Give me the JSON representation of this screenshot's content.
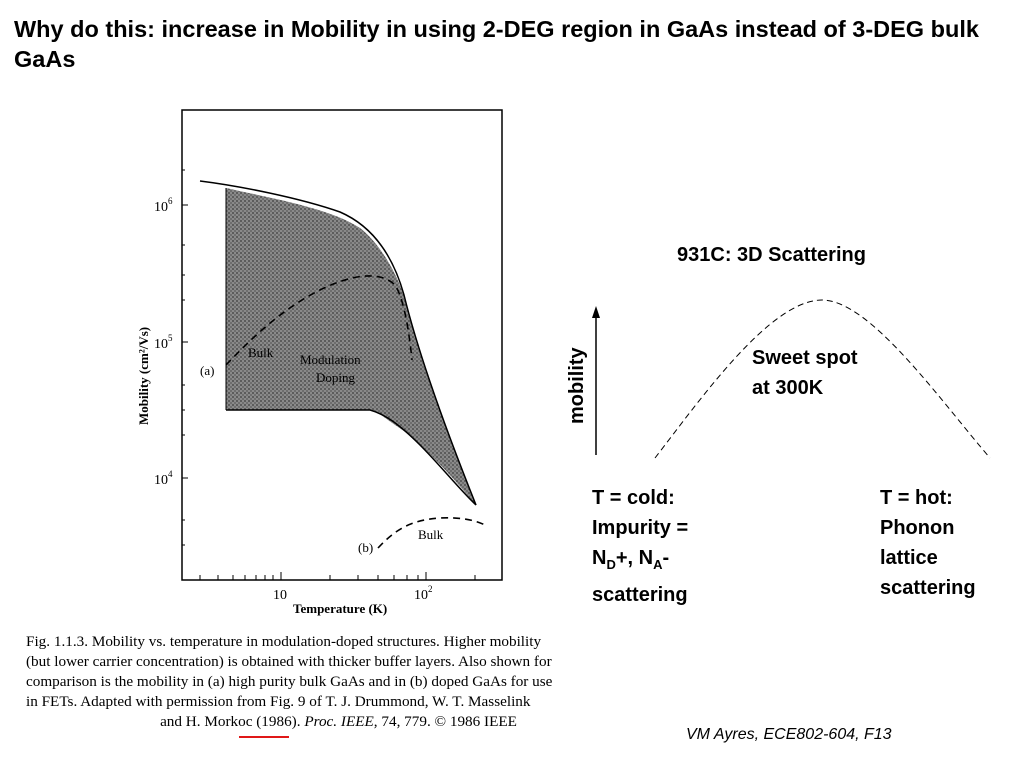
{
  "slide": {
    "title": "Why do this: increase in Mobility in using 2-DEG region in GaAs instead of 3-DEG bulk GaAs",
    "credit": "VM Ayres, ECE802-604, F13"
  },
  "figure": {
    "y_axis_label": "Mobility (cm²/Vs)",
    "x_axis_label": "Temperature (K)",
    "y_ticks": [
      "10",
      "10",
      "10"
    ],
    "y_tick_exponents": [
      "6",
      "5",
      "4"
    ],
    "x_ticks": [
      "10",
      "10"
    ],
    "x_tick_exponent": "2",
    "labels": {
      "a": "(a)",
      "b": "(b)",
      "bulk_a": "Bulk",
      "bulk_b": "Bulk",
      "modulation_1": "Modulation",
      "modulation_2": "Doping"
    },
    "caption_lines": [
      "Fig. 1.1.3. Mobility vs. temperature in modulation-doped structures. Higher mobility",
      "(but lower carrier concentration) is obtained with thicker buffer layers. Also shown for",
      "comparison is the mobility in (a) high purity bulk GaAs and in (b) doped GaAs for use",
      "in FETs. Adapted with permission from Fig. 9 of T. J. Drummond, W. T. Masselink"
    ],
    "caption_last_pre": "and H. Morkoc (1986). ",
    "caption_last_journal": "Proc. IEEE",
    "caption_last_post": ", 74, 779. © 1986 IEEE",
    "caption_highlight_color": "#e01818"
  },
  "chart_data": {
    "type": "line",
    "title": "",
    "xlabel": "Temperature (K)",
    "ylabel": "Mobility (cm²/Vs)",
    "x_scale": "log",
    "y_scale": "log",
    "xlim": [
      2,
      400
    ],
    "ylim": [
      2000,
      3000000
    ],
    "series": [
      {
        "name": "(a) Bulk",
        "x": [
          4,
          7,
          10,
          20,
          40,
          60,
          80,
          100,
          130
        ],
        "y": [
          120000,
          150000,
          190000,
          270000,
          330000,
          280000,
          160000,
          80000,
          30000
        ]
      },
      {
        "name": "(b) Bulk",
        "x": [
          60,
          80,
          120,
          200,
          300
        ],
        "y": [
          3200,
          4200,
          5000,
          5200,
          4400
        ]
      },
      {
        "name": "Modulation Doping upper",
        "x": [
          3,
          10,
          30,
          60,
          100,
          150,
          250
        ],
        "y": [
          1600000,
          1300000,
          900000,
          500000,
          120000,
          30000,
          6000
        ]
      },
      {
        "name": "Modulation Doping lower",
        "x": [
          4,
          10,
          30,
          60,
          100,
          150,
          250
        ],
        "y": [
          30000,
          30000,
          30000,
          26000,
          18000,
          12000,
          6000
        ]
      }
    ]
  },
  "sidebar": {
    "heading": "931C: 3D Scattering",
    "y_axis_label": "mobility",
    "peak_label_1": "Sweet spot",
    "peak_label_2": "at 300K",
    "cold_1": "T = cold:",
    "cold_2": "Impurity =",
    "cold_3_a": "N",
    "cold_3_sub_a": "D",
    "cold_3_b": "+, N",
    "cold_3_sub_b": "A",
    "cold_3_c": "-",
    "cold_4": "scattering",
    "hot_1": "T = hot:",
    "hot_2": "Phonon",
    "hot_3": "lattice",
    "hot_4": "scattering"
  }
}
